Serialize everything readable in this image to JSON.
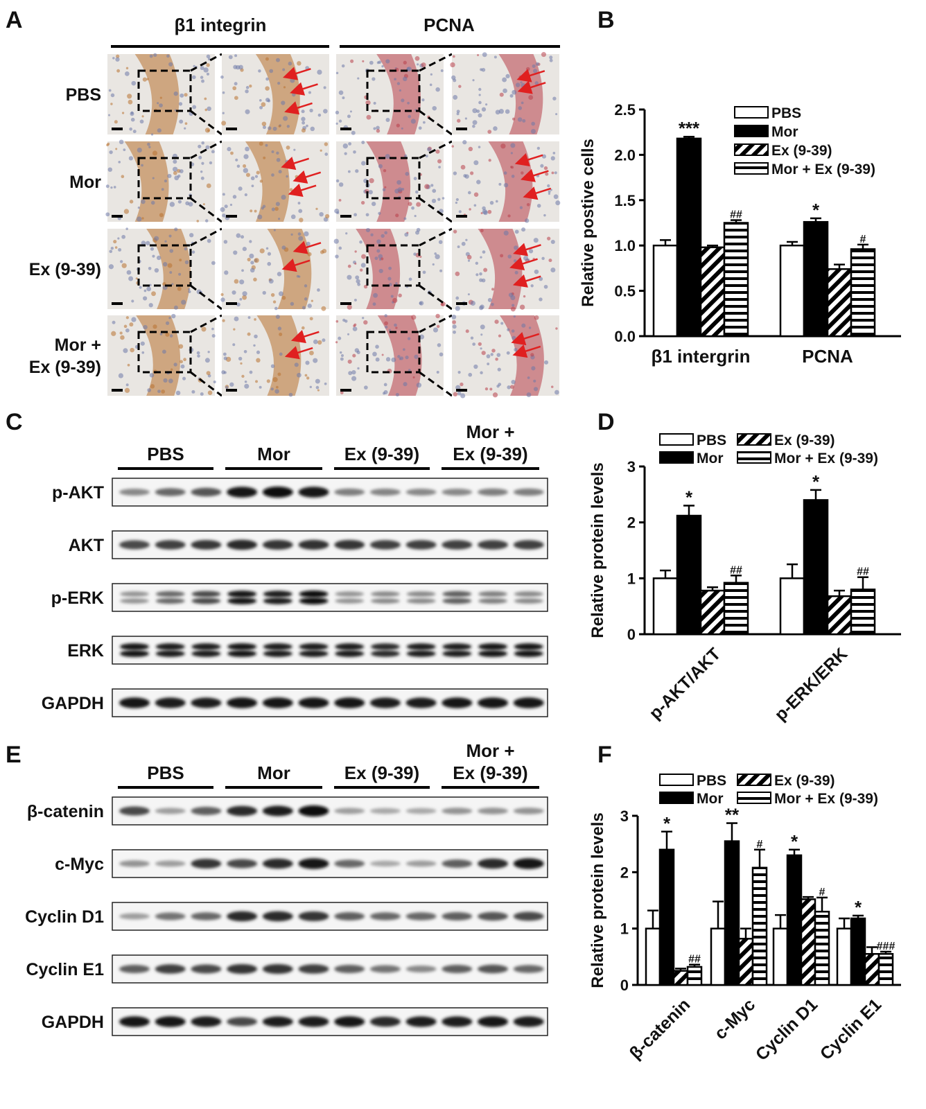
{
  "panels": {
    "A": {
      "letter": "A",
      "col_headers": [
        "β1 integrin",
        "PCNA"
      ],
      "row_labels": [
        [
          "PBS"
        ],
        [
          "Mor"
        ],
        [
          "Ex (9-39)"
        ],
        [
          "Mor +",
          "Ex (9-39)"
        ]
      ],
      "stain_colors": {
        "beta1": "#b8712f",
        "pcna": "#b8404a",
        "tissue_bg": "#e9e6e2",
        "arrow": "#e02020"
      }
    },
    "C": {
      "letter": "C",
      "groups": [
        [
          "PBS"
        ],
        [
          "Mor"
        ],
        [
          "Ex (9-39)"
        ],
        [
          "Mor +",
          "Ex (9-39)"
        ]
      ],
      "blots": [
        {
          "label": "p-AKT",
          "intensities": [
            0.4,
            0.55,
            0.65,
            0.95,
            1.0,
            0.95,
            0.45,
            0.42,
            0.4,
            0.4,
            0.45,
            0.45
          ],
          "double": false
        },
        {
          "label": "AKT",
          "intensities": [
            0.7,
            0.75,
            0.78,
            0.85,
            0.8,
            0.82,
            0.8,
            0.75,
            0.75,
            0.75,
            0.75,
            0.75
          ],
          "double": false
        },
        {
          "label": "p-ERK",
          "intensities": [
            0.35,
            0.55,
            0.7,
            0.95,
            0.9,
            1.0,
            0.35,
            0.4,
            0.4,
            0.6,
            0.45,
            0.4
          ],
          "double": true
        },
        {
          "label": "ERK",
          "intensities": [
            0.95,
            0.92,
            0.92,
            0.95,
            0.92,
            0.92,
            0.92,
            0.85,
            0.9,
            0.9,
            0.95,
            0.95
          ],
          "double": true
        },
        {
          "label": "GAPDH",
          "intensities": [
            0.95,
            0.92,
            0.9,
            0.95,
            0.95,
            0.95,
            0.95,
            0.92,
            0.92,
            0.95,
            0.95,
            0.95
          ],
          "double": false
        }
      ]
    },
    "E": {
      "letter": "E",
      "groups": [
        [
          "PBS"
        ],
        [
          "Mor"
        ],
        [
          "Ex (9-39)"
        ],
        [
          "Mor +",
          "Ex (9-39)"
        ]
      ],
      "blots": [
        {
          "label": "β-catenin",
          "intensities": [
            0.7,
            0.3,
            0.6,
            0.85,
            0.9,
            1.0,
            0.3,
            0.25,
            0.25,
            0.35,
            0.35,
            0.35
          ],
          "double": false
        },
        {
          "label": "c-Myc",
          "intensities": [
            0.35,
            0.3,
            0.8,
            0.7,
            0.85,
            0.95,
            0.55,
            0.25,
            0.3,
            0.6,
            0.85,
            0.95
          ],
          "double": false
        },
        {
          "label": "Cyclin D1",
          "intensities": [
            0.3,
            0.5,
            0.55,
            0.85,
            0.85,
            0.8,
            0.6,
            0.55,
            0.55,
            0.6,
            0.65,
            0.7
          ],
          "double": false
        },
        {
          "label": "Cyclin E1",
          "intensities": [
            0.6,
            0.75,
            0.7,
            0.8,
            0.8,
            0.75,
            0.6,
            0.5,
            0.4,
            0.6,
            0.65,
            0.55
          ],
          "double": false
        },
        {
          "label": "GAPDH",
          "intensities": [
            0.95,
            0.95,
            0.92,
            0.7,
            0.9,
            0.92,
            0.95,
            0.85,
            0.92,
            0.92,
            0.95,
            0.92
          ],
          "double": false
        }
      ]
    }
  },
  "chart_data": [
    {
      "panel": "B",
      "type": "bar",
      "ylabel": "Relative postive cells",
      "categories": [
        "β1 intergrin",
        "PCNA"
      ],
      "ylim": [
        0,
        2.5
      ],
      "yticks": [
        "0.0",
        "0.5",
        "1.0",
        "1.5",
        "2.0",
        "2.5"
      ],
      "legend_position": "top-right",
      "legend_layout": "single-column",
      "series": [
        {
          "name": "PBS",
          "pattern": "open",
          "values": [
            1.0,
            1.0
          ],
          "errors": [
            0.06,
            0.04
          ],
          "annotations": [
            "",
            ""
          ]
        },
        {
          "name": "Mor",
          "pattern": "solid",
          "values": [
            2.18,
            1.26
          ],
          "errors": [
            0.02,
            0.04
          ],
          "annotations": [
            "***",
            "*"
          ]
        },
        {
          "name": "Ex (9-39)",
          "pattern": "diagonal",
          "values": [
            0.98,
            0.74
          ],
          "errors": [
            0.02,
            0.05
          ],
          "annotations": [
            "",
            ""
          ]
        },
        {
          "name": "Mor + Ex (9-39)",
          "pattern": "horizontal",
          "values": [
            1.25,
            0.96
          ],
          "errors": [
            0.03,
            0.05
          ],
          "annotations": [
            "##",
            "#"
          ]
        }
      ]
    },
    {
      "panel": "D",
      "type": "bar",
      "ylabel": "Relative protein levels",
      "categories": [
        "p-AKT/AKT",
        "p-ERK/ERK"
      ],
      "ylim": [
        0,
        3
      ],
      "yticks": [
        "0",
        "1",
        "2",
        "3"
      ],
      "legend_position": "top",
      "legend_layout": "two-column",
      "series": [
        {
          "name": "PBS",
          "pattern": "open",
          "values": [
            1.0,
            1.0
          ],
          "errors": [
            0.14,
            0.25
          ],
          "annotations": [
            "",
            ""
          ]
        },
        {
          "name": "Mor",
          "pattern": "solid",
          "values": [
            2.12,
            2.4
          ],
          "errors": [
            0.18,
            0.18
          ],
          "annotations": [
            "*",
            "*"
          ]
        },
        {
          "name": "Ex (9-39)",
          "pattern": "diagonal",
          "values": [
            0.78,
            0.68
          ],
          "errors": [
            0.06,
            0.1
          ],
          "annotations": [
            "",
            ""
          ]
        },
        {
          "name": "Mor + Ex (9-39)",
          "pattern": "horizontal",
          "values": [
            0.92,
            0.8
          ],
          "errors": [
            0.13,
            0.22
          ],
          "annotations": [
            "##",
            "##"
          ]
        }
      ]
    },
    {
      "panel": "F",
      "type": "bar",
      "ylabel": "Relative protein  levels",
      "categories": [
        "β-catenin",
        "c-Myc",
        "Cyclin D1",
        "Cyclin E1"
      ],
      "ylim": [
        0,
        3
      ],
      "yticks": [
        "0",
        "1",
        "2",
        "3"
      ],
      "legend_position": "top",
      "legend_layout": "two-column",
      "series": [
        {
          "name": "PBS",
          "pattern": "open",
          "values": [
            1.0,
            1.0,
            1.0,
            1.0
          ],
          "errors": [
            0.32,
            0.48,
            0.24,
            0.18
          ],
          "annotations": [
            "",
            "",
            "",
            ""
          ]
        },
        {
          "name": "Mor",
          "pattern": "solid",
          "values": [
            2.4,
            2.55,
            2.3,
            1.18
          ],
          "errors": [
            0.32,
            0.32,
            0.1,
            0.05
          ],
          "annotations": [
            "*",
            "**",
            "*",
            "*"
          ]
        },
        {
          "name": "Ex (9-39)",
          "pattern": "diagonal",
          "values": [
            0.25,
            0.82,
            1.52,
            0.55
          ],
          "errors": [
            0.04,
            0.18,
            0.04,
            0.12
          ],
          "annotations": [
            "",
            "",
            "",
            ""
          ]
        },
        {
          "name": "Mor + Ex (9-39)",
          "pattern": "horizontal",
          "values": [
            0.32,
            2.08,
            1.3,
            0.55
          ],
          "errors": [
            0.04,
            0.32,
            0.25,
            0.04
          ],
          "annotations": [
            "##",
            "#",
            "#",
            "###"
          ]
        }
      ]
    }
  ],
  "letters": {
    "B": "B",
    "D": "D",
    "F": "F"
  }
}
